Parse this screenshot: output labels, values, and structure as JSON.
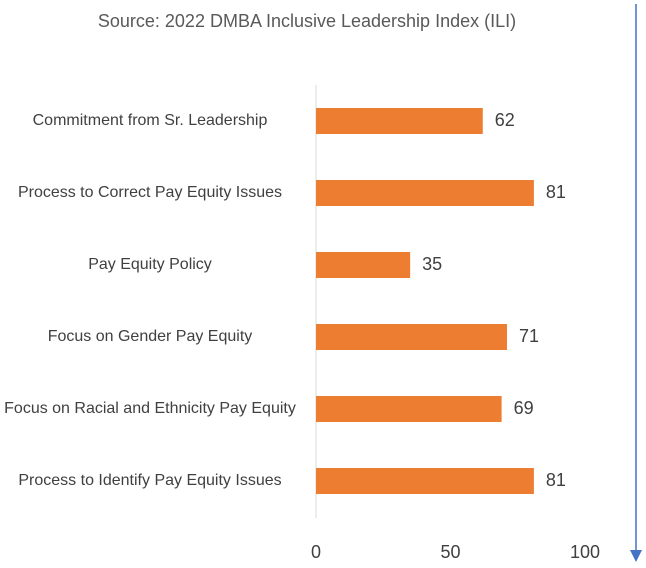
{
  "chart_data": {
    "type": "bar",
    "orientation": "horizontal",
    "title": "Source: 2022 DMBA Inclusive Leadership Index (ILI)",
    "categories": [
      "Commitment from Sr. Leadership",
      "Process to Correct Pay Equity Issues",
      "Pay Equity Policy",
      "Focus on Gender Pay Equity",
      "Focus on Racial and Ethnicity Pay Equity",
      "Process to Identify Pay Equity Issues"
    ],
    "values": [
      62,
      81,
      35,
      71,
      69,
      81
    ],
    "color": "#ed7d31",
    "xlim": [
      0,
      100
    ],
    "xticks": [
      0,
      50,
      100
    ],
    "grid": false
  }
}
